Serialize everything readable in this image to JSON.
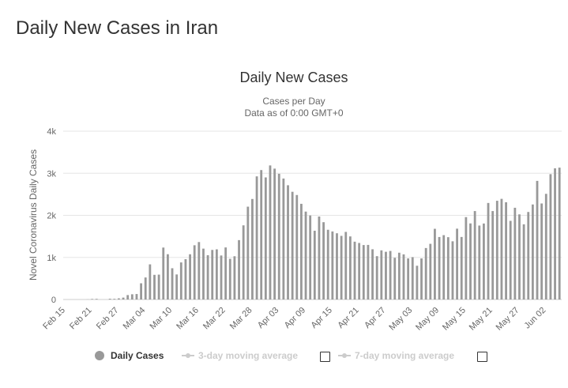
{
  "page": {
    "title": "Daily New Cases in Iran"
  },
  "chart_data": {
    "type": "bar",
    "title": "Daily New Cases",
    "subtitle_line1": "Cases per Day",
    "subtitle_line2": "Data as of 0:00 GMT+0",
    "ylabel": "Novel Coronavirus Daily Cases",
    "xlabel": "",
    "ylim": [
      0,
      4000
    ],
    "y_ticks": [
      {
        "value": 0,
        "label": "0"
      },
      {
        "value": 1000,
        "label": "1k"
      },
      {
        "value": 2000,
        "label": "2k"
      },
      {
        "value": 3000,
        "label": "3k"
      },
      {
        "value": 4000,
        "label": "4k"
      }
    ],
    "x_tick_labels": [
      "Feb 15",
      "Feb 21",
      "Feb 27",
      "Mar 04",
      "Mar 10",
      "Mar 16",
      "Mar 22",
      "Mar 28",
      "Apr 03",
      "Apr 09",
      "Apr 15",
      "Apr 21",
      "Apr 27",
      "May 03",
      "May 09",
      "May 15",
      "May 21",
      "May 27",
      "Jun 02"
    ],
    "grid": true,
    "bar_color": "#999999",
    "series": [
      {
        "name": "Daily Cases",
        "values": [
          0,
          0,
          0,
          0,
          0,
          2,
          13,
          15,
          0,
          0,
          18,
          16,
          27,
          45,
          105,
          124,
          130,
          385,
          523,
          835,
          586,
          591,
          1234,
          1076,
          743,
          595,
          881,
          958,
          1075,
          1289,
          1365,
          1209,
          1053,
          1178,
          1192,
          1046,
          1237,
          966,
          1028,
          1411,
          1762,
          2206,
          2389,
          2926,
          3076,
          2901,
          3186,
          3110,
          2988,
          2875,
          2715,
          2560,
          2483,
          2274,
          2089,
          1997,
          1634,
          1972,
          1837,
          1657,
          1617,
          1574,
          1512,
          1606,
          1499,
          1374,
          1343,
          1294,
          1297,
          1194,
          1030,
          1168,
          1134,
          1153,
          991,
          1112,
          1073,
          976,
          1006,
          802,
          976,
          1223,
          1323,
          1680,
          1485,
          1529,
          1481,
          1383,
          1683,
          1486,
          1958,
          1808,
          2102,
          1757,
          1806,
          2294,
          2102,
          2346,
          2392,
          2311,
          1869,
          2180,
          2023,
          1787,
          2080,
          2258,
          2819,
          2282,
          2511,
          2979,
          3117,
          3134
        ]
      }
    ],
    "legend": [
      {
        "label": "Daily Cases",
        "state": "active"
      },
      {
        "label": "3-day moving average",
        "state": "inactive"
      },
      {
        "label": "7-day moving average",
        "state": "inactive"
      }
    ],
    "legend_position": "bottom-center",
    "legend_dot_color": "#999999",
    "legend_inactive_color": "#cccccc"
  }
}
